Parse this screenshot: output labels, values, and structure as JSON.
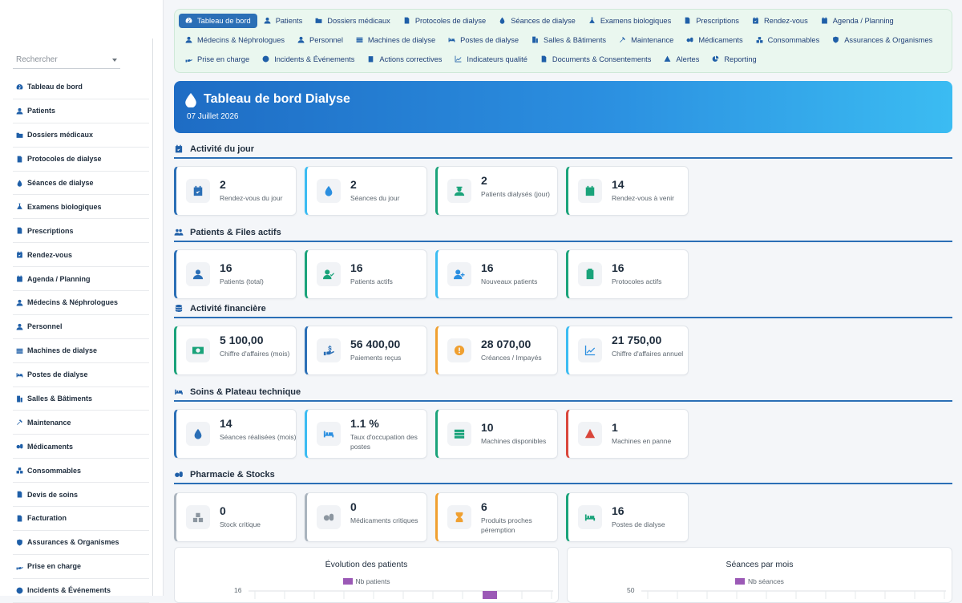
{
  "sidebar": {
    "search_placeholder": "Rechercher",
    "items": [
      {
        "label": "Tableau de bord",
        "icon": "gauge-icon"
      },
      {
        "label": "Patients",
        "icon": "user-icon"
      },
      {
        "label": "Dossiers médicaux",
        "icon": "folder-icon"
      },
      {
        "label": "Protocoles de dialyse",
        "icon": "file-icon"
      },
      {
        "label": "Séances de dialyse",
        "icon": "drop-icon"
      },
      {
        "label": "Examens biologiques",
        "icon": "flask-icon"
      },
      {
        "label": "Prescriptions",
        "icon": "prescription-icon"
      },
      {
        "label": "Rendez-vous",
        "icon": "calendar-check-icon"
      },
      {
        "label": "Agenda / Planning",
        "icon": "calendar-icon"
      },
      {
        "label": "Médecins & Néphrologues",
        "icon": "doctor-icon"
      },
      {
        "label": "Personnel",
        "icon": "user-icon"
      },
      {
        "label": "Machines de dialyse",
        "icon": "machine-icon"
      },
      {
        "label": "Postes de dialyse",
        "icon": "bed-icon"
      },
      {
        "label": "Salles & Bâtiments",
        "icon": "building-icon"
      },
      {
        "label": "Maintenance",
        "icon": "tools-icon"
      },
      {
        "label": "Médicaments",
        "icon": "pills-icon"
      },
      {
        "label": "Consommables",
        "icon": "boxes-icon"
      },
      {
        "label": "Devis de soins",
        "icon": "file-icon"
      },
      {
        "label": "Facturation",
        "icon": "file-invoice-icon"
      },
      {
        "label": "Assurances & Organismes",
        "icon": "shield-icon"
      },
      {
        "label": "Prise en charge",
        "icon": "hand-icon"
      },
      {
        "label": "Incidents & Événements",
        "icon": "alert-circle-icon"
      }
    ]
  },
  "topnav": {
    "rows": [
      [
        {
          "label": "Tableau de bord",
          "icon": "gauge-icon",
          "active": true
        },
        {
          "label": "Patients",
          "icon": "user-icon"
        },
        {
          "label": "Dossiers médicaux",
          "icon": "folder-icon"
        },
        {
          "label": "Protocoles de dialyse",
          "icon": "file-icon"
        },
        {
          "label": "Séances de dialyse",
          "icon": "drop-icon"
        },
        {
          "label": "Examens biologiques",
          "icon": "flask-icon"
        },
        {
          "label": "Prescriptions",
          "icon": "prescription-icon"
        },
        {
          "label": "Rendez-vous",
          "icon": "calendar-check-icon"
        },
        {
          "label": "Agenda / Planning",
          "icon": "calendar-icon"
        }
      ],
      [
        {
          "label": "Médecins & Néphrologues",
          "icon": "doctor-icon"
        },
        {
          "label": "Personnel",
          "icon": "user-icon"
        },
        {
          "label": "Machines de dialyse",
          "icon": "machine-icon"
        },
        {
          "label": "Postes de dialyse",
          "icon": "bed-icon"
        },
        {
          "label": "Salles & Bâtiments",
          "icon": "building-icon"
        },
        {
          "label": "Maintenance",
          "icon": "tools-icon"
        },
        {
          "label": "Médicaments",
          "icon": "pills-icon"
        },
        {
          "label": "Consommables",
          "icon": "boxes-icon"
        },
        {
          "label": "Assurances & Organismes",
          "icon": "shield-icon"
        }
      ],
      [
        {
          "label": "Prise en charge",
          "icon": "hand-icon"
        },
        {
          "label": "Incidents & Événements",
          "icon": "alert-circle-icon"
        },
        {
          "label": "Actions correctives",
          "icon": "clipboard-check-icon"
        },
        {
          "label": "Indicateurs qualité",
          "icon": "chart-line-icon"
        },
        {
          "label": "Documents & Consentements",
          "icon": "file-icon"
        },
        {
          "label": "Alertes",
          "icon": "warning-icon"
        },
        {
          "label": "Reporting",
          "icon": "pie-chart-icon"
        }
      ]
    ]
  },
  "hero": {
    "title": "Tableau de bord Dialyse",
    "date": "07 Juillet 2026"
  },
  "sections": [
    {
      "title": "Activité du jour",
      "icon": "calendar-check-icon",
      "cards": [
        {
          "value": "2",
          "label": "Rendez-vous du jour",
          "icon": "calendar-check-icon",
          "accent": "#2b6fb6",
          "icon_color": "#2b6fb6"
        },
        {
          "value": "2",
          "label": "Séances du jour",
          "icon": "drop-icon",
          "accent": "#3bbcf2",
          "icon_color": "#2b8fe0"
        },
        {
          "value": "2",
          "label": "Patients dialysés (jour)",
          "icon": "user-nurse-icon",
          "accent": "#1aa37a",
          "icon_color": "#1aa37a"
        },
        {
          "value": "14",
          "label": "Rendez-vous à venir",
          "icon": "calendar-icon",
          "accent": "#1aa37a",
          "icon_color": "#1aa37a"
        }
      ]
    },
    {
      "title": "Patients & Files actifs",
      "icon": "users-icon",
      "cards": [
        {
          "value": "16",
          "label": "Patients (total)",
          "icon": "user-icon",
          "accent": "#2b6fb6",
          "icon_color": "#2b6fb6"
        },
        {
          "value": "16",
          "label": "Patients actifs",
          "icon": "user-check-icon",
          "accent": "#1aa37a",
          "icon_color": "#1aa37a"
        },
        {
          "value": "16",
          "label": "Nouveaux patients",
          "icon": "user-plus-icon",
          "accent": "#3bbcf2",
          "icon_color": "#2b8fe0"
        },
        {
          "value": "16",
          "label": "Protocoles actifs",
          "icon": "clipboard-list-icon",
          "accent": "#1aa37a",
          "icon_color": "#1aa37a"
        }
      ]
    },
    {
      "title": "Activité financière",
      "icon": "coins-icon",
      "cards": [
        {
          "value": "5 100,00",
          "label": "Chiffre d'affaires (mois)",
          "icon": "money-icon",
          "accent": "#1aa37a",
          "icon_color": "#1aa37a"
        },
        {
          "value": "56 400,00",
          "label": "Paiements reçus",
          "icon": "hand-dollar-icon",
          "accent": "#2b6fb6",
          "icon_color": "#2b6fb6"
        },
        {
          "value": "28 070,00",
          "label": "Créances / Impayés",
          "icon": "exclamation-circle-icon",
          "accent": "#f0a030",
          "icon_color": "#f0a030"
        },
        {
          "value": "21 750,00",
          "label": "Chiffre d'affaires annuel",
          "icon": "chart-line-icon",
          "accent": "#3bbcf2",
          "icon_color": "#2b8fe0"
        }
      ]
    },
    {
      "title": "Soins & Plateau technique",
      "icon": "bed-icon",
      "cards": [
        {
          "value": "14",
          "label": "Séances réalisées (mois)",
          "icon": "drop-icon",
          "accent": "#2b6fb6",
          "icon_color": "#2b6fb6"
        },
        {
          "value": "1.1 %",
          "label": "Taux d'occupation des postes",
          "icon": "bed-icon",
          "accent": "#3bbcf2",
          "icon_color": "#2b8fe0"
        },
        {
          "value": "10",
          "label": "Machines disponibles",
          "icon": "server-icon",
          "accent": "#1aa37a",
          "icon_color": "#1aa37a"
        },
        {
          "value": "1",
          "label": "Machines en panne",
          "icon": "warning-icon",
          "accent": "#d9463b",
          "icon_color": "#d9463b"
        }
      ]
    },
    {
      "title": "Pharmacie & Stocks",
      "icon": "pills-icon",
      "cards": [
        {
          "value": "0",
          "label": "Stock critique",
          "icon": "boxes-icon",
          "accent": "#aab4be",
          "icon_color": "#8c96a0"
        },
        {
          "value": "0",
          "label": "Médicaments critiques",
          "icon": "pills-icon",
          "accent": "#aab4be",
          "icon_color": "#8c96a0"
        },
        {
          "value": "6",
          "label": "Produits proches péremption",
          "icon": "hourglass-icon",
          "accent": "#f0a030",
          "icon_color": "#f0a030"
        },
        {
          "value": "16",
          "label": "Postes de dialyse",
          "icon": "bed-icon",
          "accent": "#1aa37a",
          "icon_color": "#1aa37a"
        }
      ]
    }
  ],
  "charts": [
    {
      "title": "Évolution des patients",
      "legend": "Nb patients",
      "y_top_tick": "16",
      "color": "#9b59b6"
    },
    {
      "title": "Séances par mois",
      "legend": "Nb séances",
      "y_top_tick": "50",
      "color": "#9b59b6"
    }
  ]
}
